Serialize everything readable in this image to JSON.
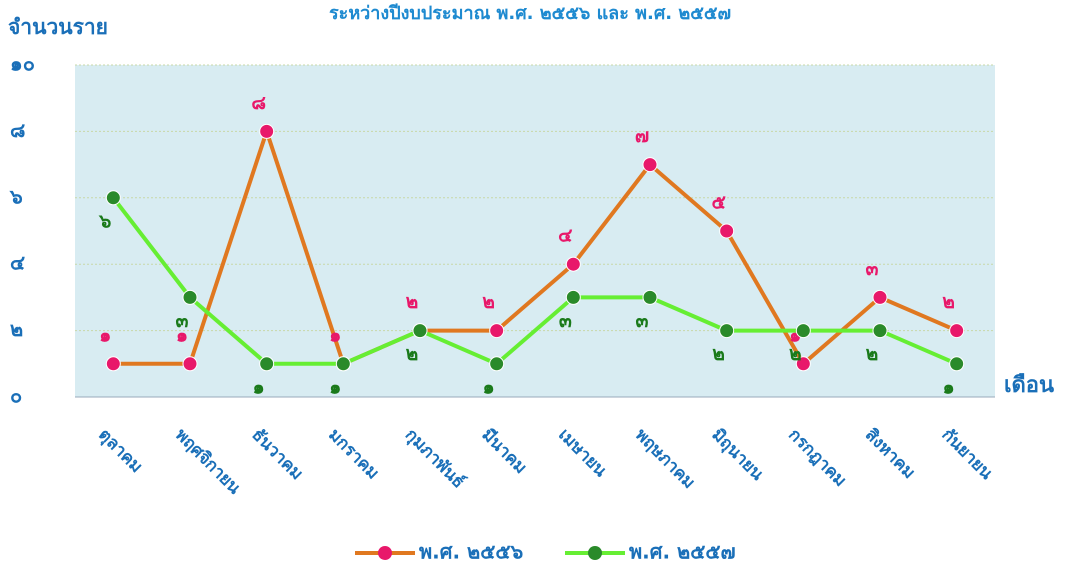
{
  "chart_data": {
    "type": "line",
    "title": "ระหว่างปีงบประมาณ พ.ศ. ๒๕๕๖ และ พ.ศ. ๒๕๕๗",
    "y_label": "จำนวนราย",
    "x_label": "เดือน",
    "categories": [
      "ตุลาคม",
      "พฤศจิกายน",
      "ธันวาคม",
      "มกราคม",
      "กุมภาพันธ์",
      "มีนาคม",
      "เมษายน",
      "พฤษภาคม",
      "มิถุนายน",
      "กรกฎาคม",
      "สิงหาคม",
      "กันยายน"
    ],
    "series": [
      {
        "name": "พ.ศ. ๒๕๕๖",
        "color": "#e07820",
        "label_color": "#e8186a",
        "marker_color": "#e8186a",
        "values": [
          1,
          1,
          8,
          1,
          2,
          2,
          4,
          7,
          5,
          1,
          3,
          2
        ],
        "value_labels": [
          "๑",
          "๑",
          "๘",
          "๑",
          "๒",
          "๒",
          "๔",
          "๗",
          "๕",
          "๑",
          "๓",
          "๒"
        ]
      },
      {
        "name": "พ.ศ. ๒๕๕๗",
        "color": "#66ee33",
        "label_color": "#1a7a1a",
        "marker_color": "#2a8a2a",
        "values": [
          6,
          3,
          1,
          1,
          2,
          1,
          3,
          3,
          2,
          2,
          2,
          1
        ],
        "value_labels": [
          "๖",
          "๓",
          "๑",
          "๑",
          "๒",
          "๑",
          "๓",
          "๓",
          "๒",
          "๒",
          "๒",
          "๑"
        ]
      }
    ],
    "ylim": [
      0,
      10
    ],
    "yticks": [
      {
        "value": 0,
        "label": "๐"
      },
      {
        "value": 2,
        "label": "๒"
      },
      {
        "value": 4,
        "label": "๔"
      },
      {
        "value": 6,
        "label": "๖"
      },
      {
        "value": 8,
        "label": "๘"
      },
      {
        "value": 10,
        "label": "๑๐"
      }
    ],
    "grid": true,
    "legend": "bottom"
  }
}
